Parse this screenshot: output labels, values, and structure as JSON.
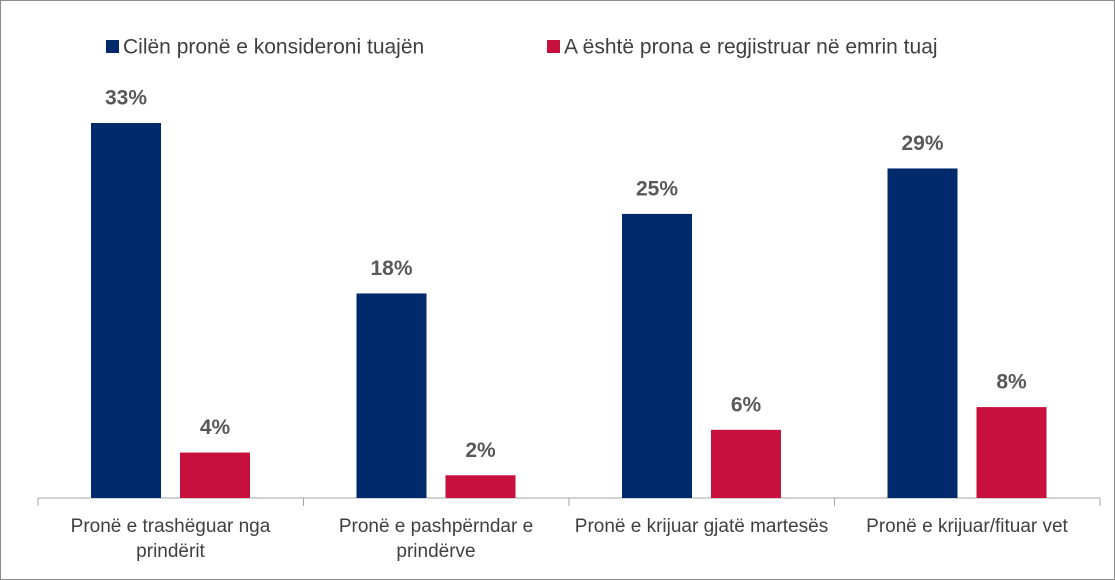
{
  "chart_data": {
    "type": "bar",
    "categories": [
      "Pronë e trashëguar nga prindërit",
      "Pronë e pashpërndar e prindërve",
      "Pronë e krijuar gjatë martesës",
      "Pronë e krijuar/fituar vet"
    ],
    "series": [
      {
        "name": "Cilën pronë e konsideroni tuajën",
        "color": "#002a6c",
        "values": [
          33,
          18,
          25,
          29
        ],
        "value_labels": [
          "33%",
          "18%",
          "25%",
          "29%"
        ]
      },
      {
        "name": "A është prona e regjistruar në emrin tuaj",
        "color": "#c8103e",
        "values": [
          4,
          2,
          6,
          8
        ],
        "value_labels": [
          "4%",
          "2%",
          "6%",
          "8%"
        ]
      }
    ],
    "legend": "top"
  }
}
